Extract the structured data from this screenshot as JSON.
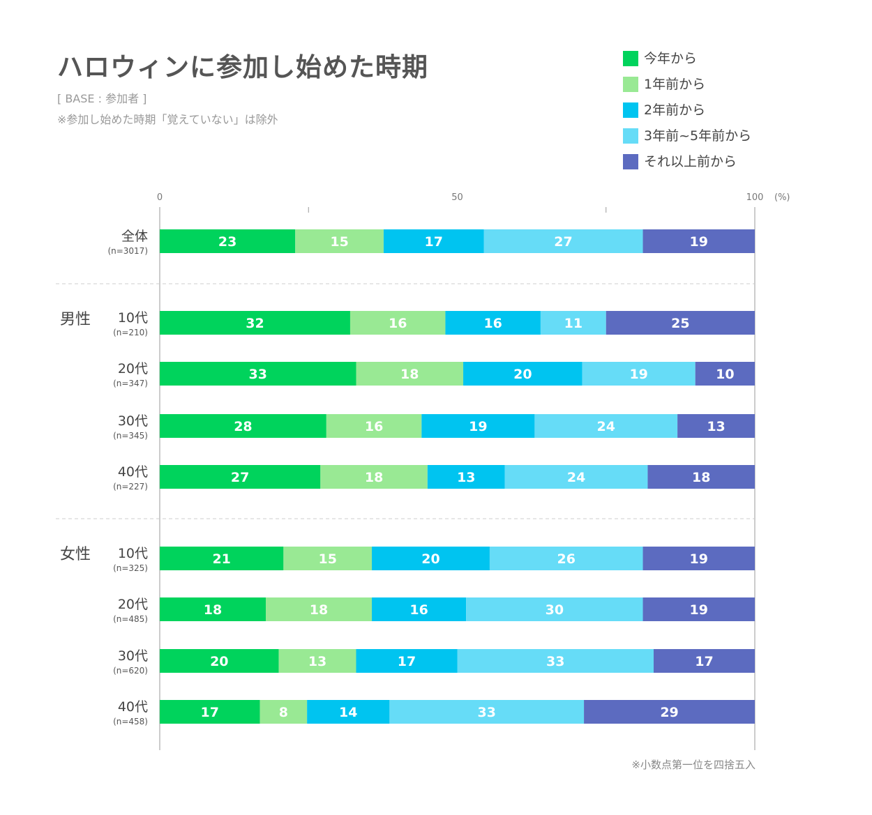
{
  "title": "ハロウィンに参加し始めた時期",
  "base_note": "[ BASE : 参加者 ]",
  "exclusion_note": "※参加し始めた時期「覚えていない」は除外",
  "footnote": "※小数点第一位を四捨五入",
  "colors": [
    "#00d35c",
    "#99e994",
    "#00c4f0",
    "#66dcf7",
    "#5c6bc0"
  ],
  "chart_data": {
    "type": "bar",
    "orientation": "horizontal-stacked-100",
    "xlim": [
      0,
      100
    ],
    "x_ticks": [
      "0",
      "50",
      "100"
    ],
    "x_unit": "(%)",
    "series_names": [
      "今年から",
      "1年前から",
      "2年前から",
      "3年前~5年前から",
      "それ以上前から"
    ],
    "groups": [
      {
        "name": "",
        "rows": [
          {
            "label": "全体",
            "n": "(n=3017)",
            "values": [
              23,
              15,
              17,
              27,
              19
            ]
          }
        ]
      },
      {
        "name": "男性",
        "rows": [
          {
            "label": "10代",
            "n": "(n=210)",
            "values": [
              32,
              16,
              16,
              11,
              25
            ]
          },
          {
            "label": "20代",
            "n": "(n=347)",
            "values": [
              33,
              18,
              20,
              19,
              10
            ]
          },
          {
            "label": "30代",
            "n": "(n=345)",
            "values": [
              28,
              16,
              19,
              24,
              13
            ]
          },
          {
            "label": "40代",
            "n": "(n=227)",
            "values": [
              27,
              18,
              13,
              24,
              18
            ]
          }
        ]
      },
      {
        "name": "女性",
        "rows": [
          {
            "label": "10代",
            "n": "(n=325)",
            "values": [
              21,
              15,
              20,
              26,
              19
            ]
          },
          {
            "label": "20代",
            "n": "(n=485)",
            "values": [
              18,
              18,
              16,
              30,
              19
            ]
          },
          {
            "label": "30代",
            "n": "(n=620)",
            "values": [
              20,
              13,
              17,
              33,
              17
            ]
          },
          {
            "label": "40代",
            "n": "(n=458)",
            "values": [
              17,
              8,
              14,
              33,
              29
            ]
          }
        ]
      }
    ]
  }
}
